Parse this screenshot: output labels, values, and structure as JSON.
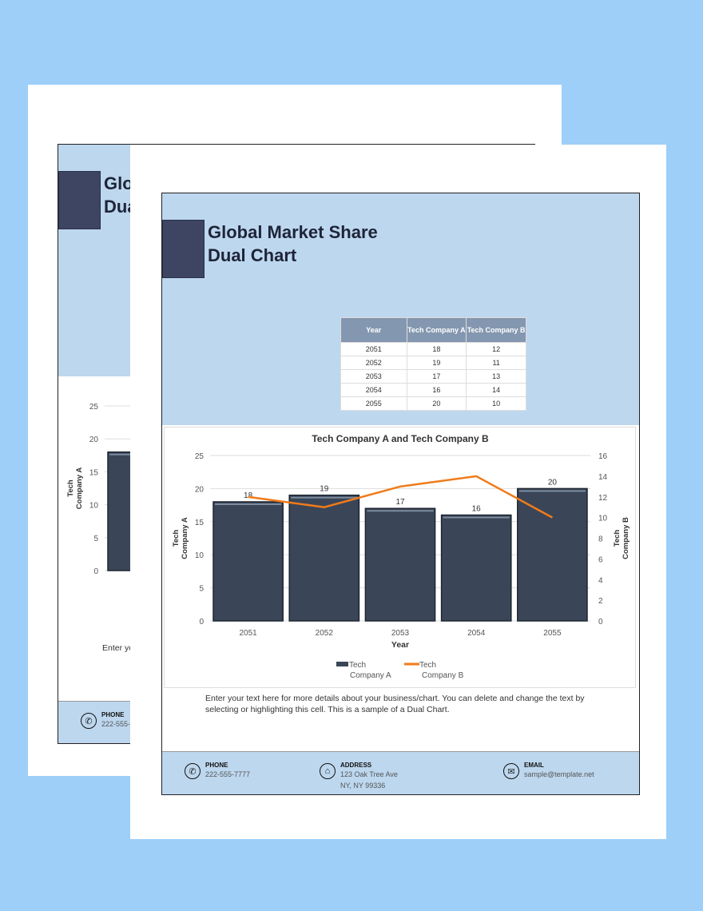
{
  "document": {
    "title_line1": "Global Market Share",
    "title_line2": "Dual Chart",
    "description": "Enter your text here for more details about your business/chart. You can delete and change the text by selecting or highlighting this cell. This is a sample of a Dual Chart."
  },
  "table": {
    "headers": [
      "Year",
      "Tech Company A",
      "Tech Company B"
    ],
    "rows": [
      [
        "2051",
        "18",
        "12"
      ],
      [
        "2052",
        "19",
        "11"
      ],
      [
        "2053",
        "17",
        "13"
      ],
      [
        "2054",
        "16",
        "14"
      ],
      [
        "2055",
        "20",
        "10"
      ]
    ]
  },
  "chart_data": {
    "type": "bar+line",
    "title": "Tech Company A and Tech Company B",
    "xlabel": "Year",
    "ylabel": "Tech Company A",
    "y2label": "Tech Company B",
    "categories": [
      "2051",
      "2052",
      "2053",
      "2054",
      "2055"
    ],
    "ylim": [
      0,
      25
    ],
    "yticks": [
      0,
      5,
      10,
      15,
      20,
      25
    ],
    "y2lim": [
      0,
      16
    ],
    "y2ticks": [
      0,
      2,
      4,
      6,
      8,
      10,
      12,
      14,
      16
    ],
    "grid": true,
    "legend": "bottom",
    "series": [
      {
        "name": "Tech Company A",
        "type": "bar",
        "axis": "left",
        "values": [
          18,
          19,
          17,
          16,
          20
        ],
        "color": "#3a4657",
        "data_labels": true
      },
      {
        "name": "Tech Company B",
        "type": "line",
        "axis": "right",
        "values": [
          12,
          11,
          13,
          14,
          10
        ],
        "color": "#f07a1a"
      }
    ]
  },
  "footer": {
    "phone_label": "PHONE",
    "phone": "222-555-7777",
    "address_label": "ADDRESS",
    "address_line1": "123 Oak Tree Ave",
    "address_line2": "NY, NY 99336",
    "email_label": "EMAIL",
    "email": "sample@template.net"
  },
  "colors": {
    "background": "#9dcff8",
    "header": "#bdd7ee",
    "title_box": "#3d4563",
    "bar": "#3a4657",
    "line": "#f07a1a",
    "table_header": "#8497b0"
  }
}
